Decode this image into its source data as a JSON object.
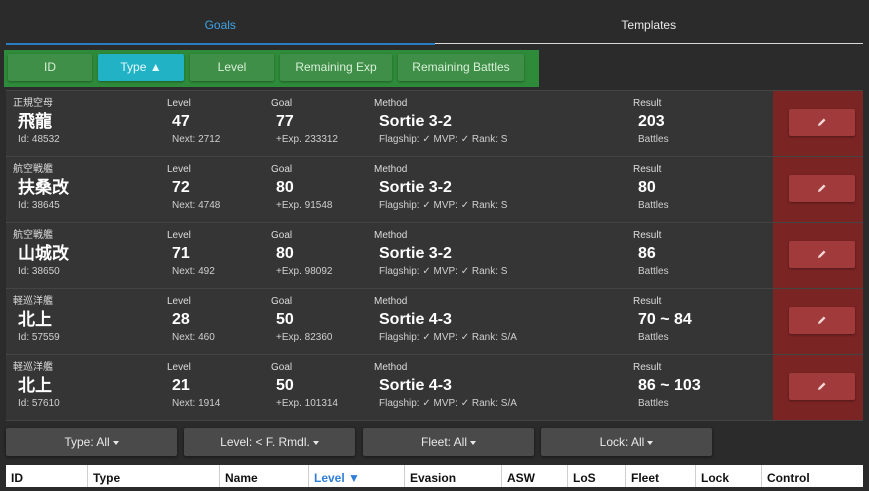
{
  "tabs": [
    "Goals",
    "Templates"
  ],
  "sort": {
    "buttons": [
      "ID",
      "Type ▲",
      "Level",
      "Remaining Exp",
      "Remaining Battles"
    ],
    "active_index": 1,
    "active_color": "#21b3c5",
    "bar_color": "#2e8b3a"
  },
  "labels": {
    "level": "Level",
    "goal": "Goal",
    "method": "Method",
    "result": "Result",
    "battles": "Battles"
  },
  "goals": [
    {
      "type": "正規空母",
      "name": "飛龍",
      "id": "Id: 48532",
      "level": "47",
      "next": "Next: 2712",
      "goal": "77",
      "exp": "+Exp. 233312",
      "method": "Sortie 3-2",
      "conds": "Flagship: ✓ MVP: ✓ Rank: S",
      "result": "203"
    },
    {
      "type": "航空戦艦",
      "name": "扶桑改",
      "id": "Id: 38645",
      "level": "72",
      "next": "Next: 4748",
      "goal": "80",
      "exp": "+Exp. 91548",
      "method": "Sortie 3-2",
      "conds": "Flagship: ✓ MVP: ✓ Rank: S",
      "result": "80"
    },
    {
      "type": "航空戦艦",
      "name": "山城改",
      "id": "Id: 38650",
      "level": "71",
      "next": "Next: 492",
      "goal": "80",
      "exp": "+Exp. 98092",
      "method": "Sortie 3-2",
      "conds": "Flagship: ✓ MVP: ✓ Rank: S",
      "result": "86"
    },
    {
      "type": "軽巡洋艦",
      "name": "北上",
      "id": "Id: 57559",
      "level": "28",
      "next": "Next: 460",
      "goal": "50",
      "exp": "+Exp. 82360",
      "method": "Sortie 4-3",
      "conds": "Flagship: ✓ MVP: ✓ Rank: S/A",
      "result": "70 ~ 84"
    },
    {
      "type": "軽巡洋艦",
      "name": "北上",
      "id": "Id: 57610",
      "level": "21",
      "next": "Next: 1914",
      "goal": "50",
      "exp": "+Exp. 101314",
      "method": "Sortie 4-3",
      "conds": "Flagship: ✓ MVP: ✓ Rank: S/A",
      "result": "86 ~ 103"
    }
  ],
  "edit_icon": "pencil-icon",
  "control_color": "#7a2424",
  "filters": [
    "Type: All",
    "Level: < F. Rmdl.",
    "Fleet: All",
    "Lock: All"
  ],
  "table_headers": [
    "ID",
    "Type",
    "Name",
    "Level ▼",
    "Evasion",
    "ASW",
    "LoS",
    "Fleet",
    "Lock",
    "Control"
  ],
  "sorted_header_index": 3
}
